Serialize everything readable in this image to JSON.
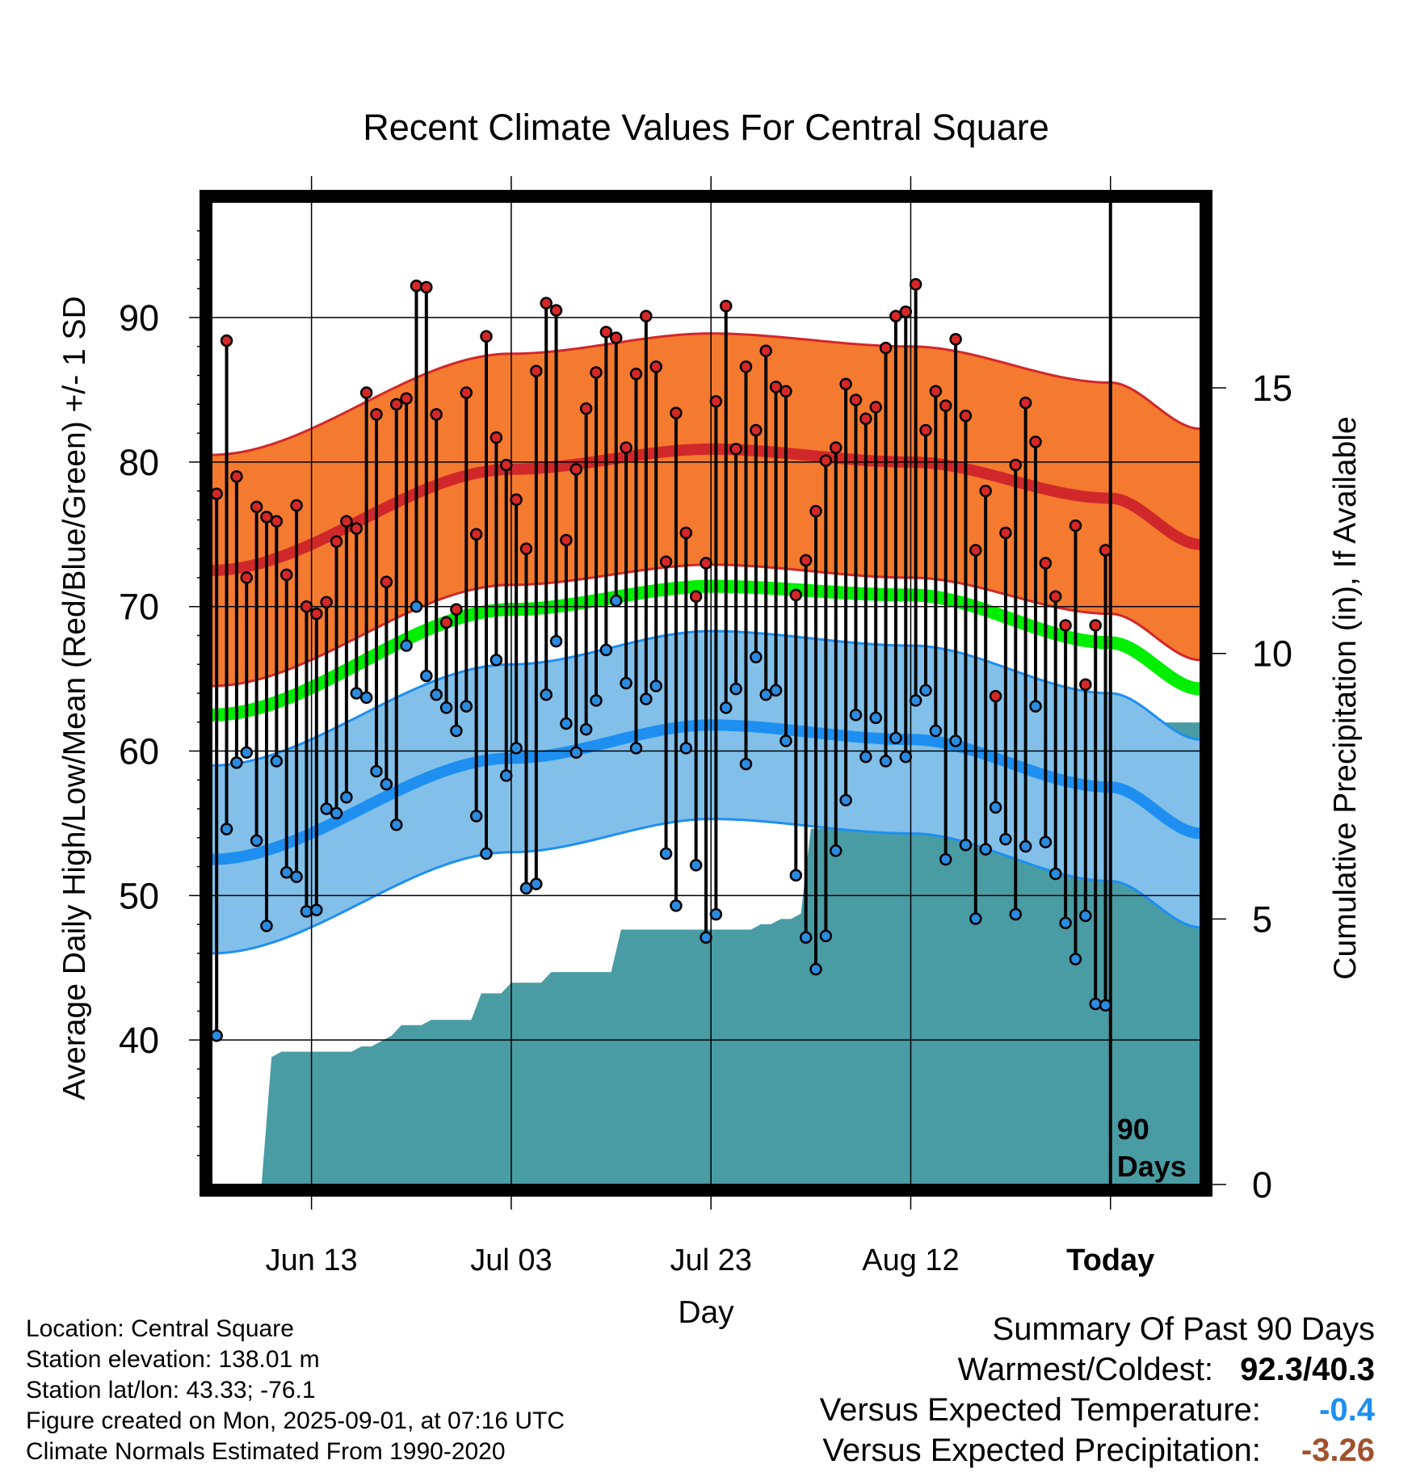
{
  "chart_data": {
    "type": "line",
    "title": "Recent Climate Values For Central Square",
    "xlabel": "Day",
    "ylabel": "Average Daily High/Low/Mean (Red/Blue/Green) +/- 1 SD",
    "y2label": "Cumulative Precipitation (in), If Available",
    "ylim": [
      30,
      98
    ],
    "y2lim": [
      0,
      18.5
    ],
    "yticks": [
      40,
      50,
      60,
      70,
      80,
      90
    ],
    "y2ticks": [
      0,
      5,
      10,
      15
    ],
    "xlim": [
      -90,
      9
    ],
    "x_tick_days": [
      -80,
      -60,
      -40,
      -20,
      0
    ],
    "x_tick_labels": [
      "Jun 13",
      "Jul 03",
      "Jul 23",
      "Aug 12",
      "Today"
    ],
    "annotation": "90 Days",
    "grid": true,
    "daily_high": [
      77.8,
      88.4,
      79.0,
      72.0,
      76.9,
      76.2,
      75.9,
      72.2,
      77.0,
      70.0,
      69.5,
      70.3,
      74.5,
      75.9,
      75.4,
      84.8,
      83.3,
      71.7,
      84.0,
      84.4,
      92.2,
      92.1,
      83.3,
      68.9,
      69.8,
      84.8,
      75.0,
      88.7,
      81.7,
      79.8,
      77.4,
      74.0,
      86.3,
      91.0,
      90.5,
      74.6,
      79.5,
      83.7,
      86.2,
      89.0,
      88.6,
      81.0,
      86.1,
      90.1,
      86.6,
      73.1,
      83.4,
      75.1,
      70.7,
      73.0,
      84.2,
      90.8,
      80.9,
      86.6,
      82.2,
      87.7,
      85.2,
      84.9,
      70.8,
      73.2,
      76.6,
      80.1,
      81.0,
      85.4,
      84.3,
      83.0,
      83.8,
      87.9,
      90.1,
      90.4,
      92.3,
      82.2,
      84.9,
      83.9,
      88.5,
      83.2,
      73.9,
      78.0,
      63.8,
      75.1,
      79.8,
      84.1,
      81.4,
      73.0,
      70.7,
      68.7,
      75.6,
      64.6,
      68.7,
      73.9
    ],
    "daily_low": [
      40.3,
      54.6,
      59.2,
      59.9,
      53.8,
      47.9,
      59.3,
      51.6,
      51.3,
      48.9,
      49.0,
      56.0,
      55.7,
      56.8,
      64.0,
      63.7,
      58.6,
      57.7,
      54.9,
      67.3,
      70.0,
      65.2,
      63.9,
      63.0,
      61.4,
      63.1,
      55.5,
      52.9,
      66.3,
      58.3,
      60.2,
      50.5,
      50.8,
      63.9,
      67.6,
      61.9,
      59.9,
      61.5,
      63.5,
      67.0,
      70.4,
      64.7,
      60.2,
      63.6,
      64.5,
      52.9,
      49.3,
      60.2,
      52.1,
      47.1,
      48.7,
      63.0,
      64.3,
      59.1,
      66.5,
      63.9,
      64.2,
      60.7,
      51.4,
      47.1,
      44.9,
      47.2,
      53.1,
      56.6,
      62.5,
      59.6,
      62.3,
      59.3,
      60.9,
      59.6,
      63.5,
      64.2,
      61.4,
      52.5,
      60.7,
      53.5,
      48.4,
      53.2,
      56.1,
      53.9,
      48.7,
      53.4,
      63.1,
      53.7,
      51.5,
      48.1,
      45.6,
      48.6,
      42.5,
      42.4
    ],
    "cumulative_precip": [
      0,
      0,
      0,
      0,
      0,
      0,
      2.4,
      2.5,
      2.5,
      2.5,
      2.5,
      2.5,
      2.5,
      2.5,
      2.5,
      2.6,
      2.6,
      2.7,
      2.8,
      3.0,
      3.0,
      3.0,
      3.1,
      3.1,
      3.1,
      3.1,
      3.1,
      3.6,
      3.6,
      3.6,
      3.8,
      3.8,
      3.8,
      3.8,
      4.0,
      4.0,
      4.0,
      4.0,
      4.0,
      4.0,
      4.0,
      4.8,
      4.8,
      4.8,
      4.8,
      4.8,
      4.8,
      4.8,
      4.8,
      4.8,
      4.8,
      4.8,
      4.8,
      4.8,
      4.8,
      4.9,
      4.9,
      5.0,
      5.0,
      5.1,
      6.7,
      6.7,
      6.7,
      6.8,
      6.8,
      6.8,
      6.8,
      6.8,
      6.8,
      6.8,
      6.8,
      6.8,
      6.8,
      6.9,
      6.9,
      6.9,
      6.9,
      6.9,
      6.9,
      7.0,
      7.0,
      7.0,
      7.0,
      7.7,
      7.7,
      7.7,
      7.7,
      7.7,
      7.9,
      8.0,
      8.3,
      8.5,
      8.6,
      8.7,
      8.7,
      8.7,
      8.7,
      8.7,
      8.7,
      8.7
    ],
    "normal_high_anchors": [
      [
        -90,
        72.5
      ],
      [
        -60,
        79.5
      ],
      [
        -40,
        80.9
      ],
      [
        -20,
        80.0
      ],
      [
        0,
        77.5
      ],
      [
        9,
        74.3
      ]
    ],
    "normal_low_anchors": [
      [
        -90,
        52.5
      ],
      [
        -60,
        59.5
      ],
      [
        -40,
        61.8
      ],
      [
        -20,
        60.8
      ],
      [
        0,
        57.5
      ],
      [
        9,
        54.3
      ]
    ],
    "normal_mean_anchors": [
      [
        -90,
        62.5
      ],
      [
        -60,
        69.8
      ],
      [
        -40,
        71.4
      ],
      [
        -20,
        70.8
      ],
      [
        0,
        67.5
      ],
      [
        9,
        64.3
      ]
    ],
    "high_sd": 8.0,
    "low_sd": 6.5,
    "colors": {
      "high_band": "#f47a2f",
      "high_line": "#d0282a",
      "low_band": "#82c0e9",
      "low_line": "#1e8ff0",
      "mean_line": "#00ee00",
      "precip": "#4a9ca4",
      "high_marker": "#d62728",
      "low_marker": "#2b8be0",
      "neg_temp": "#1e8ff0",
      "neg_precip": "#a0522d"
    }
  },
  "info": {
    "location": "Location: Central Square",
    "elevation": "Station elevation: 138.01 m",
    "latlon": "Station lat/lon: 43.33; -76.1",
    "created": "Figure created on Mon, 2025-09-01, at 07:16 UTC",
    "normals": "Climate Normals Estimated From 1990-2020"
  },
  "summary": {
    "title": "Summary Of Past 90 Days",
    "warm_cold_label": "Warmest/Coldest:",
    "warm_cold_value": "92.3/40.3",
    "temp_label": "Versus Expected Temperature:",
    "temp_value": "-0.4",
    "precip_label": "Versus Expected Precipitation:",
    "precip_value": "-3.26"
  }
}
